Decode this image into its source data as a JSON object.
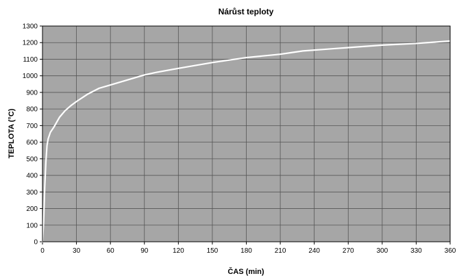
{
  "chart_data": {
    "type": "line",
    "title": "Nárůst teploty",
    "xlabel": "ČAS (min)",
    "ylabel": "TEPLOTA (°C)",
    "xlim": [
      0,
      360
    ],
    "ylim": [
      0,
      1300
    ],
    "xticks": [
      0,
      30,
      60,
      90,
      120,
      150,
      180,
      210,
      240,
      270,
      300,
      330,
      360
    ],
    "yticks": [
      0,
      100,
      200,
      300,
      400,
      500,
      600,
      700,
      800,
      900,
      1000,
      1100,
      1200,
      1300
    ],
    "grid": true,
    "legend": "none",
    "colors": {
      "plot_background": "#a6a6a6",
      "grid": "#555555",
      "line": "#ffffff"
    },
    "series": [
      {
        "x": [
          0,
          1,
          2,
          3,
          4,
          5,
          7,
          10,
          15,
          20,
          25,
          30,
          40,
          50,
          60,
          70,
          80,
          90,
          100,
          120,
          150,
          180,
          210,
          220,
          230,
          240,
          250,
          260,
          270,
          300,
          330,
          360
        ],
        "y": [
          0,
          120,
          330,
          480,
          580,
          620,
          660,
          690,
          750,
          790,
          820,
          845,
          890,
          925,
          945,
          965,
          985,
          1005,
          1020,
          1045,
          1080,
          1110,
          1130,
          1140,
          1150,
          1155,
          1160,
          1165,
          1170,
          1185,
          1195,
          1210
        ]
      }
    ]
  }
}
